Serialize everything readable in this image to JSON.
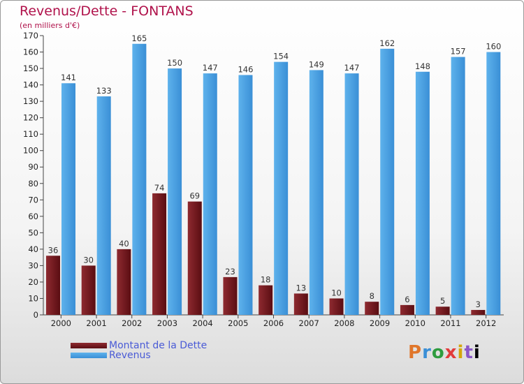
{
  "header": {
    "title": "Revenus/Dette - FONTANS",
    "subtitle": "(en milliers d'€)"
  },
  "legend": {
    "items": [
      {
        "label": "Montant de la Dette",
        "color": "#6e1216"
      },
      {
        "label": "Revenus",
        "color": "#4aa3e6"
      }
    ]
  },
  "logo": {
    "text": "Proxiti",
    "letters": [
      "P",
      "r",
      "o",
      "x",
      "i",
      "t",
      "i"
    ]
  },
  "colors": {
    "title": "#b0124b",
    "legend_text": "#4a5bd6",
    "dette_dark": "#5a0d12",
    "dette_light": "#8e2a30",
    "revenus_light": "#5eb2ec",
    "revenus_dark": "#3a8fd6"
  },
  "chart_data": {
    "type": "bar",
    "categories": [
      "2000",
      "2001",
      "2002",
      "2003",
      "2004",
      "2005",
      "2006",
      "2007",
      "2008",
      "2009",
      "2010",
      "2011",
      "2012"
    ],
    "series": [
      {
        "name": "Montant de la Dette",
        "values": [
          36,
          30,
          40,
          74,
          69,
          23,
          18,
          13,
          10,
          8,
          6,
          5,
          3
        ]
      },
      {
        "name": "Revenus",
        "values": [
          141,
          133,
          165,
          150,
          147,
          146,
          154,
          149,
          147,
          162,
          148,
          157,
          160
        ]
      }
    ],
    "title": "Revenus/Dette - FONTANS",
    "ylabel": "(en milliers d'€)",
    "ylim": [
      0,
      170
    ],
    "ytick_step": 10,
    "grid": false,
    "legend_position": "bottom-left"
  }
}
